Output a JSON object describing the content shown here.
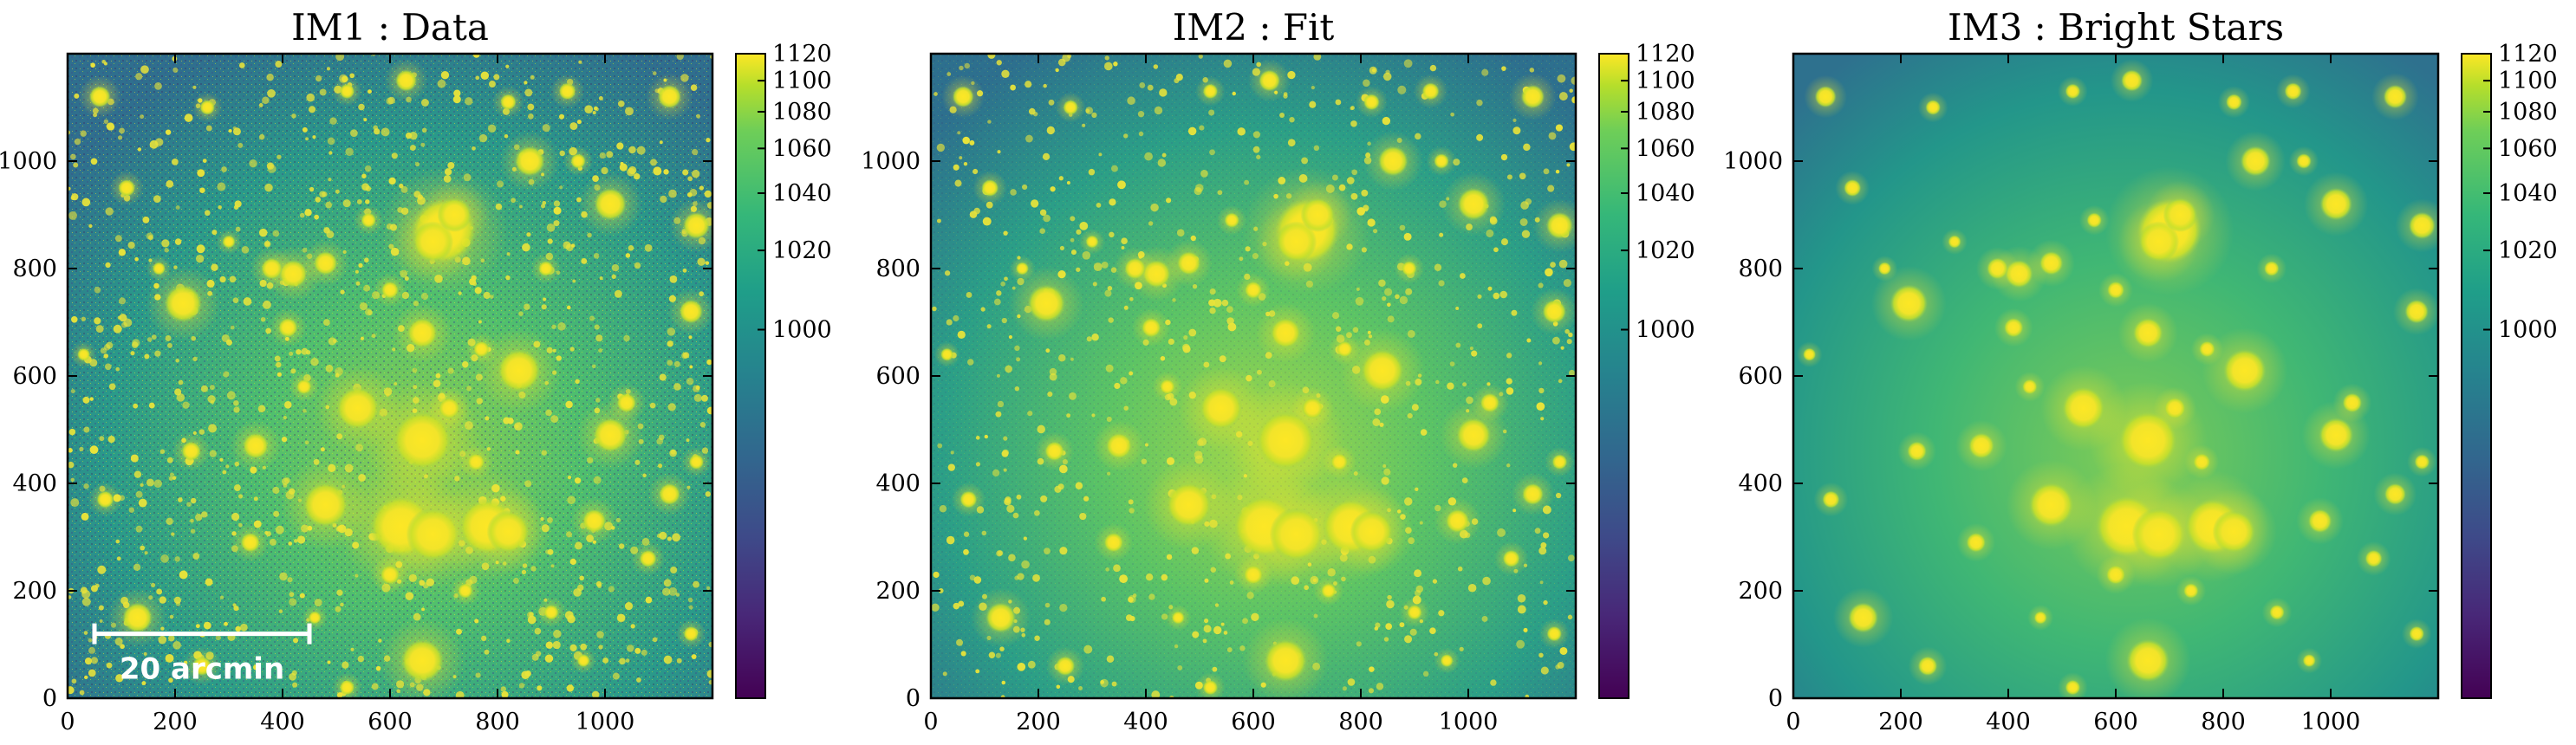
{
  "panels": [
    {
      "title": "IM1 : Data",
      "scalebar_label": "20 arcmin",
      "image": "data"
    },
    {
      "title": "IM2 : Fit",
      "image": "fit"
    },
    {
      "title": "IM3 : Bright Stars",
      "image": "bright-stars"
    }
  ],
  "colormap": "viridis",
  "chart_data": [
    {
      "type": "heatmap",
      "title": "IM1 : Data",
      "xlim": [
        0,
        1200
      ],
      "ylim": [
        0,
        1200
      ],
      "xticks": [
        0,
        200,
        400,
        600,
        800,
        1000
      ],
      "yticks": [
        0,
        200,
        400,
        600,
        800,
        1000
      ],
      "colorbar": {
        "vmin": 960,
        "vmax": 1120,
        "scale": "nonlinear",
        "ticks": [
          1000,
          1020,
          1040,
          1060,
          1080,
          1100,
          1120
        ]
      },
      "annotations": [
        "20 arcmin"
      ]
    },
    {
      "type": "heatmap",
      "title": "IM2 : Fit",
      "xlim": [
        0,
        1200
      ],
      "ylim": [
        0,
        1200
      ],
      "xticks": [
        0,
        200,
        400,
        600,
        800,
        1000
      ],
      "yticks": [
        0,
        200,
        400,
        600,
        800,
        1000
      ],
      "colorbar": {
        "vmin": 960,
        "vmax": 1120,
        "scale": "nonlinear",
        "ticks": [
          1000,
          1020,
          1040,
          1060,
          1080,
          1100,
          1120
        ]
      }
    },
    {
      "type": "heatmap",
      "title": "IM3 : Bright Stars",
      "xlim": [
        0,
        1200
      ],
      "ylim": [
        0,
        1200
      ],
      "xticks": [
        0,
        200,
        400,
        600,
        800,
        1000
      ],
      "yticks": [
        0,
        200,
        400,
        600,
        800,
        1000
      ],
      "colorbar": {
        "vmin": 960,
        "vmax": 1120,
        "scale": "nonlinear",
        "ticks": [
          1000,
          1020,
          1040,
          1060,
          1080,
          1100,
          1120
        ]
      }
    }
  ]
}
